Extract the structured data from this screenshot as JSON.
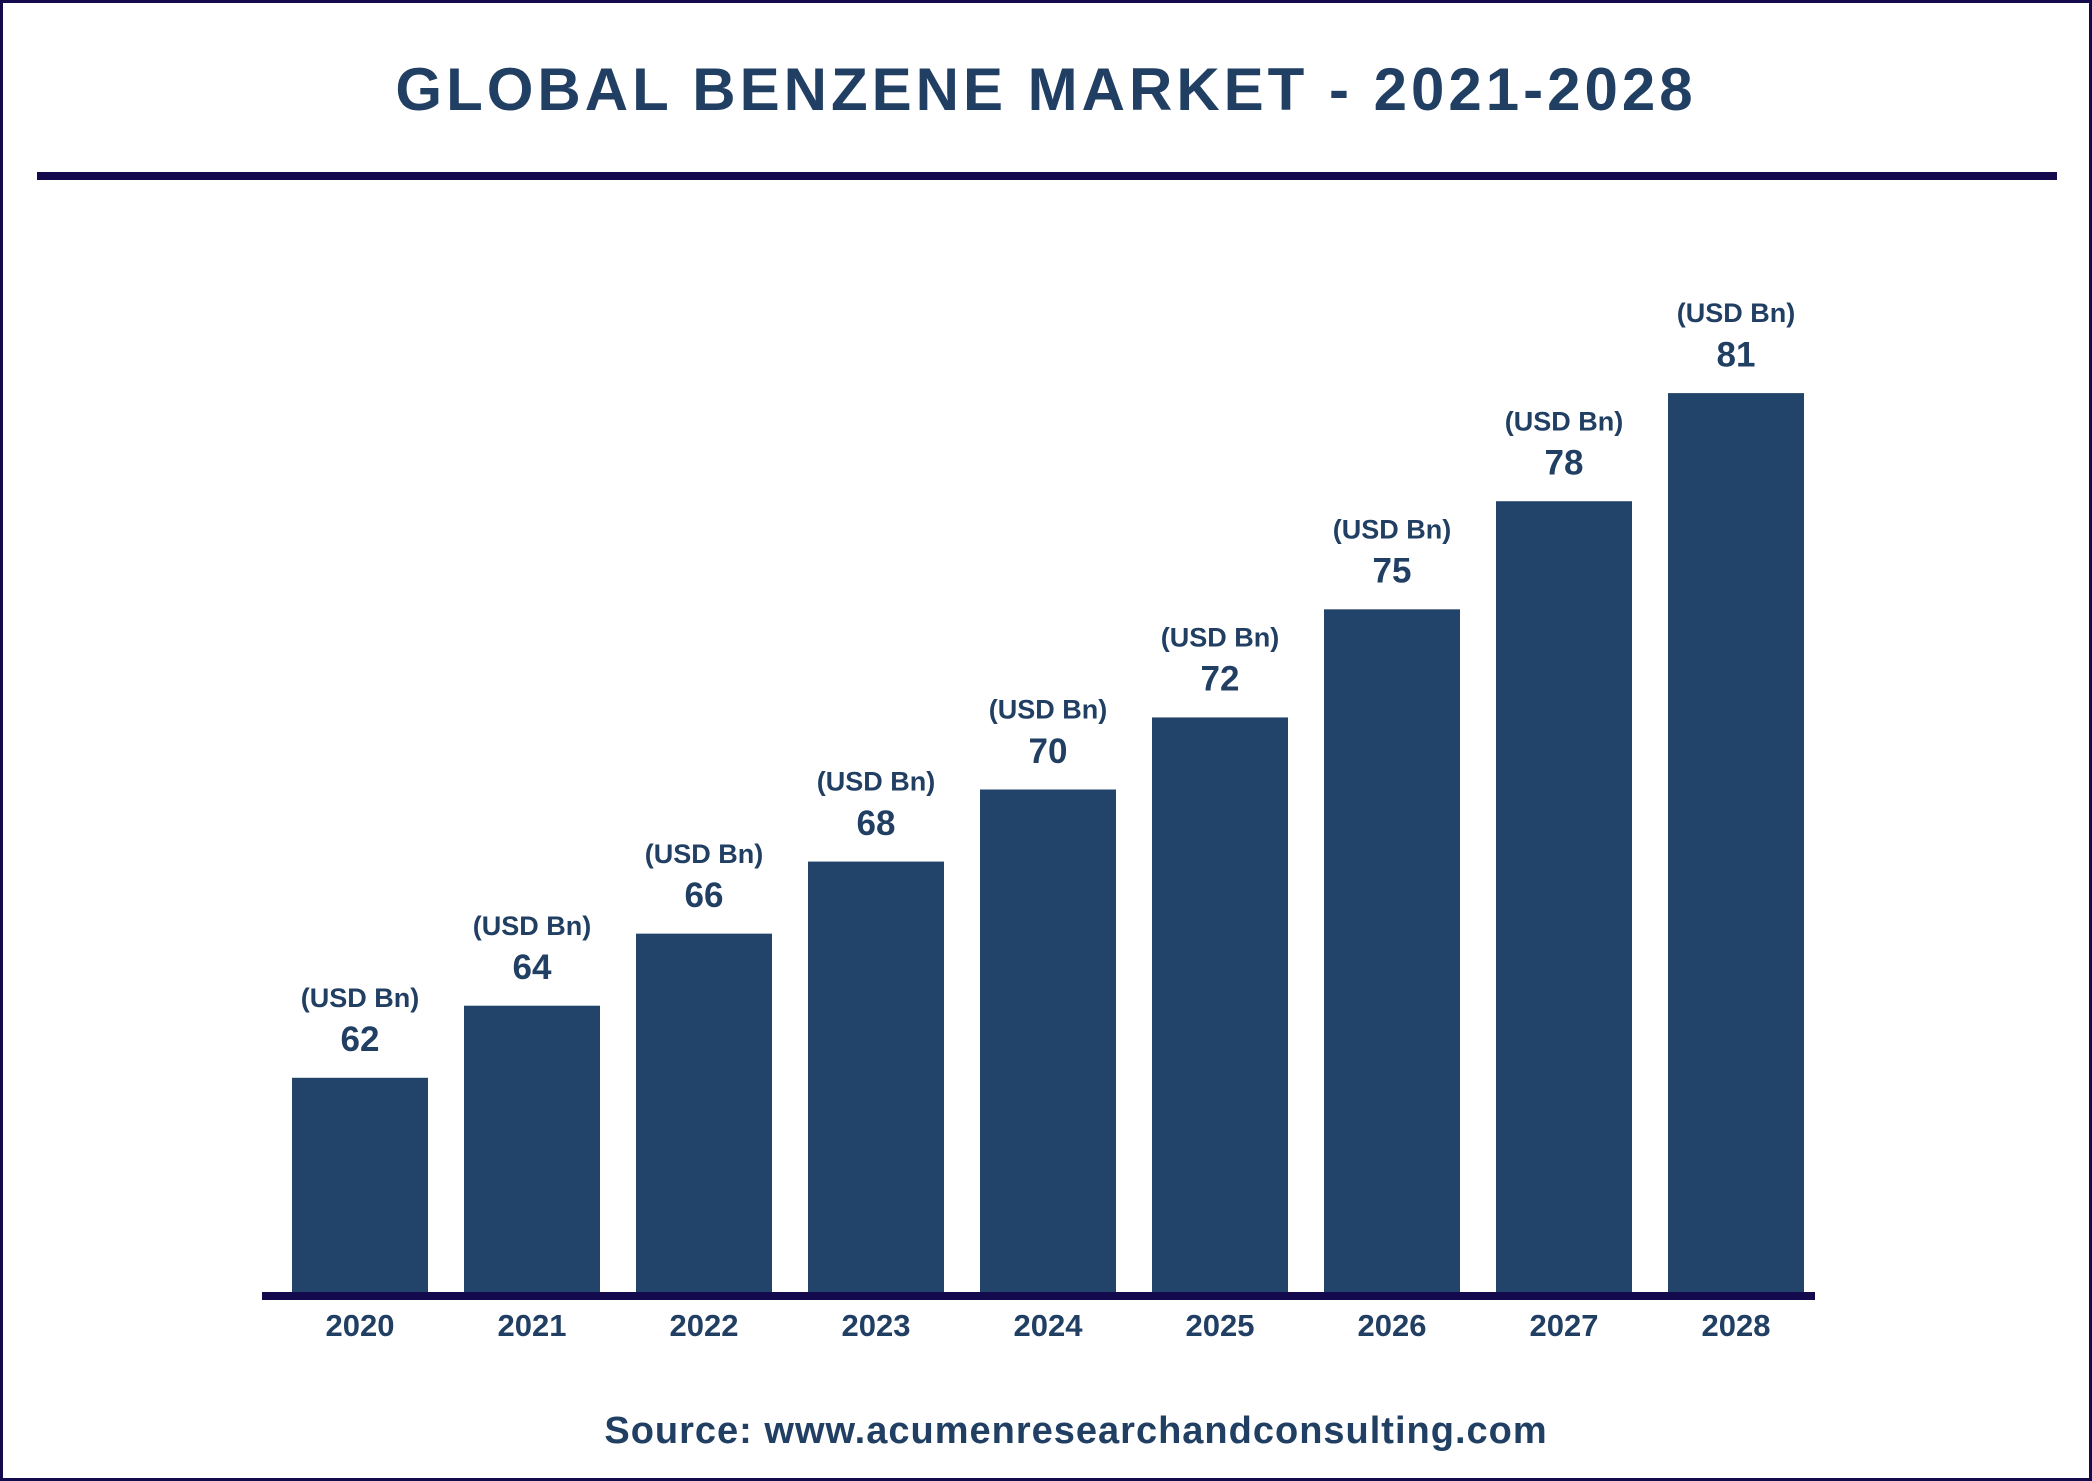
{
  "chart_data": {
    "type": "bar",
    "title": "GLOBAL BENZENE MARKET - 2021-2028",
    "categories": [
      "2020",
      "2021",
      "2022",
      "2023",
      "2024",
      "2025",
      "2026",
      "2027",
      "2028"
    ],
    "values": [
      62,
      64,
      66,
      68,
      70,
      72,
      75,
      78,
      81
    ],
    "unit_label": "(USD Bn)",
    "color": "#23446a",
    "ylim": [
      56,
      84
    ],
    "source": "Source: www.acumenresearchandconsulting.com"
  }
}
